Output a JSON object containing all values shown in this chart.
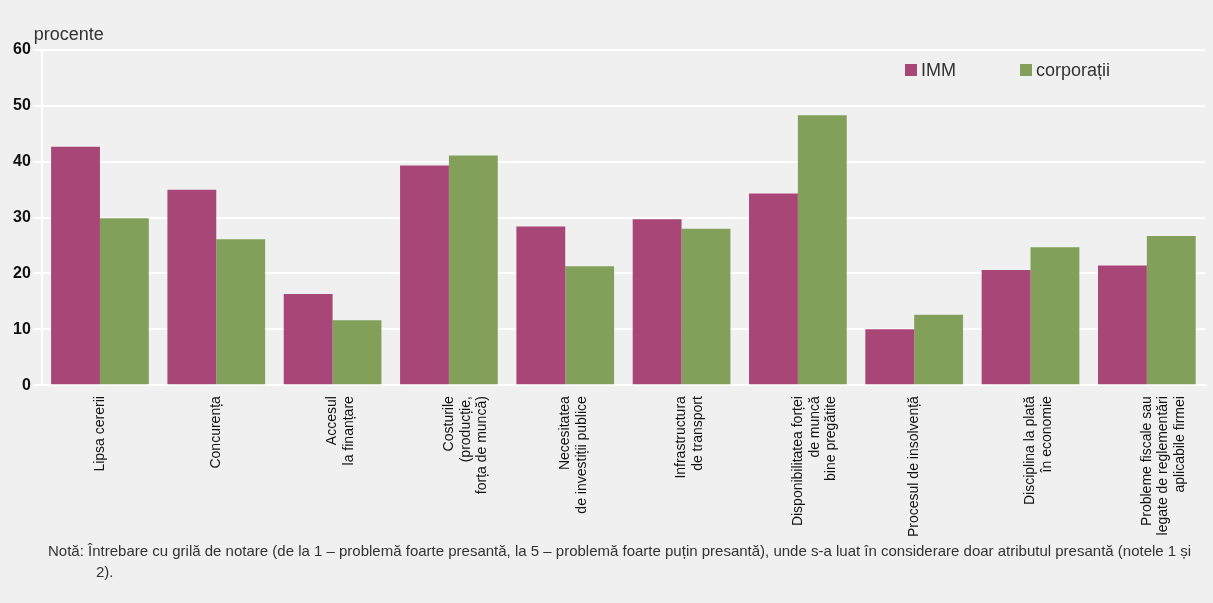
{
  "chart_data": {
    "type": "bar",
    "ylabel": "procente",
    "categories": [
      "Lipsa cererii",
      "Concurența",
      "Accesul\nla finanțare",
      "Costurile\n(producție,\nforța de muncă)",
      "Necesitatea\nde investiții publice",
      "Infrastructura\nde transport",
      "Disponibilitatea forței\nde muncă\nbine pregătite",
      "Procesul de insolvență",
      "Disciplina la plată\nîn economie",
      "Probleme fiscale sau\nlegate de reglementări\naplicabile firmei"
    ],
    "series": [
      {
        "name": "IMM",
        "color": "#a84677",
        "values": [
          42.7,
          35.0,
          16.3,
          39.3,
          28.4,
          29.7,
          34.3,
          10.0,
          20.6,
          21.4
        ]
      },
      {
        "name": "corporații",
        "color": "#82a05a",
        "values": [
          29.9,
          26.1,
          11.6,
          41.1,
          21.3,
          28.0,
          48.3,
          12.6,
          24.7,
          26.7
        ]
      }
    ],
    "ylim": [
      0,
      60
    ],
    "yticks": [
      0,
      10,
      20,
      30,
      40,
      50,
      60
    ],
    "grid": "y",
    "legend": "top right",
    "annotations": [
      "Notă: Întrebare cu grilă de notare (de la 1 – problemă foarte presantă, la 5 – problemă foarte puțin presantă), unde s-a luat în considerare doar atributul presantă (notele 1 și 2)."
    ]
  }
}
